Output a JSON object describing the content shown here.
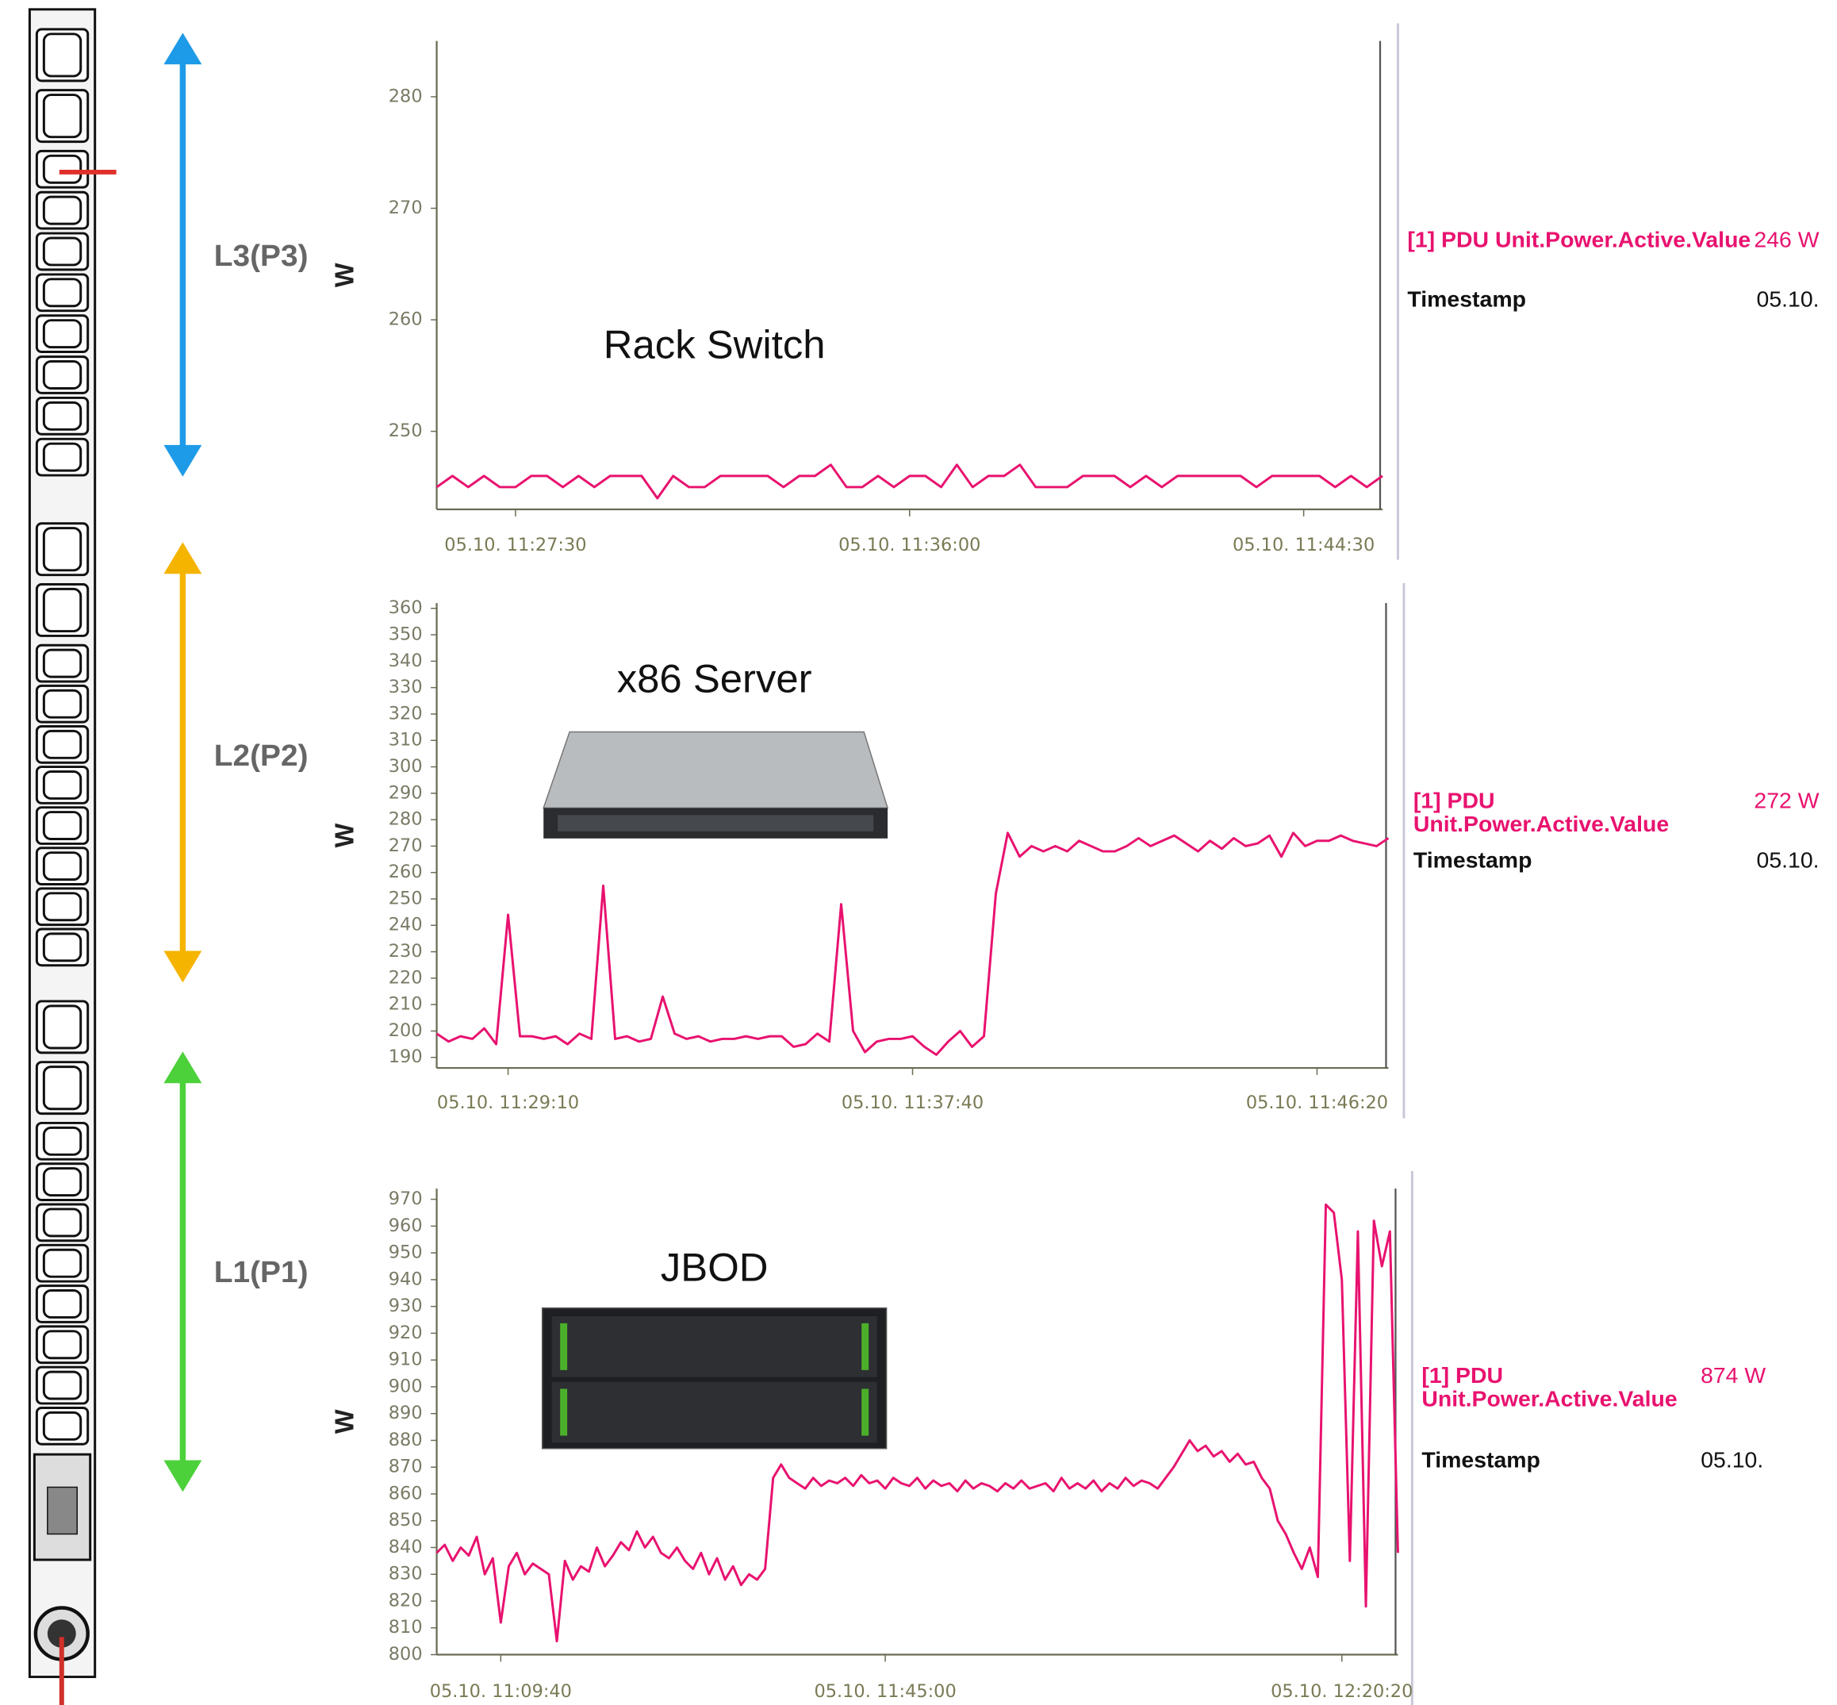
{
  "pdu": {
    "phases": [
      "L3(P3)",
      "L2(P2)",
      "L1(P1)"
    ]
  },
  "chart_data": [
    {
      "type": "line",
      "annotation": "Rack Switch",
      "ylabel": "W",
      "ylim": [
        243,
        285
      ],
      "yticks": [
        250,
        260,
        270,
        280
      ],
      "categories": [
        null,
        null,
        null,
        null,
        null,
        "05.10. 11:27:30",
        null,
        null,
        null,
        null,
        null,
        null,
        null,
        null,
        null,
        null,
        null,
        null,
        null,
        null,
        null,
        null,
        null,
        null,
        null,
        null,
        null,
        null,
        null,
        null,
        "05.10. 11:36:00",
        null,
        null,
        null,
        null,
        null,
        null,
        null,
        null,
        null,
        null,
        null,
        null,
        null,
        null,
        null,
        null,
        null,
        null,
        null,
        null,
        null,
        null,
        null,
        null,
        "05.10. 11:44:30",
        null,
        null,
        null,
        null,
        null
      ],
      "series": [
        {
          "name": "[1] PDU Unit.Power.Active.Value",
          "color": "#e8126f",
          "values": [
            245,
            246,
            245,
            246,
            245,
            245,
            246,
            246,
            245,
            246,
            245,
            246,
            246,
            246,
            244,
            246,
            245,
            245,
            246,
            246,
            246,
            246,
            245,
            246,
            246,
            247,
            245,
            245,
            246,
            245,
            246,
            246,
            245,
            247,
            245,
            246,
            246,
            247,
            245,
            245,
            245,
            246,
            246,
            246,
            245,
            246,
            245,
            246,
            246,
            246,
            246,
            246,
            245,
            246,
            246,
            246,
            246,
            245,
            246,
            245,
            246
          ]
        }
      ],
      "readout_value": "246 W",
      "readout_time_label": "Timestamp",
      "readout_time": "05.10."
    },
    {
      "type": "line",
      "annotation": "x86 Server",
      "ylabel": "W",
      "ylim": [
        186,
        362
      ],
      "yticks": [
        190,
        200,
        210,
        220,
        230,
        240,
        250,
        260,
        270,
        280,
        290,
        300,
        310,
        320,
        330,
        340,
        350,
        360
      ],
      "categories": [
        null,
        null,
        null,
        null,
        null,
        null,
        "05.10. 11:29:10",
        null,
        null,
        null,
        null,
        null,
        null,
        null,
        null,
        null,
        null,
        null,
        null,
        null,
        null,
        null,
        null,
        null,
        null,
        null,
        null,
        null,
        null,
        null,
        null,
        null,
        null,
        null,
        null,
        null,
        null,
        null,
        null,
        null,
        "05.10. 11:37:40",
        null,
        null,
        null,
        null,
        null,
        null,
        null,
        null,
        null,
        null,
        null,
        null,
        null,
        null,
        null,
        null,
        null,
        null,
        null,
        null,
        null,
        null,
        null,
        null,
        null,
        null,
        null,
        null,
        null,
        null,
        null,
        null,
        null,
        "05.10. 11:46:20",
        null,
        null,
        null,
        null,
        null,
        null
      ],
      "series": [
        {
          "name": "[1] PDU Unit.Power.Active.Value",
          "color": "#e8126f",
          "values": [
            199,
            196,
            198,
            197,
            201,
            195,
            244,
            198,
            198,
            197,
            198,
            195,
            199,
            197,
            255,
            197,
            198,
            196,
            197,
            213,
            199,
            197,
            198,
            196,
            197,
            197,
            198,
            197,
            198,
            198,
            194,
            195,
            199,
            196,
            248,
            200,
            192,
            196,
            197,
            197,
            198,
            194,
            191,
            196,
            200,
            194,
            198,
            252,
            275,
            266,
            270,
            268,
            270,
            268,
            272,
            270,
            268,
            268,
            270,
            273,
            270,
            272,
            274,
            271,
            268,
            272,
            269,
            273,
            270,
            271,
            274,
            266,
            275,
            270,
            272,
            272,
            274,
            272,
            271,
            270,
            273
          ]
        }
      ],
      "readout_value": "272 W",
      "readout_time_label": "Timestamp",
      "readout_time": "05.10."
    },
    {
      "type": "line",
      "annotation": "JBOD",
      "ylabel": "W",
      "ylim": [
        800,
        974
      ],
      "yticks": [
        800,
        810,
        820,
        830,
        840,
        850,
        860,
        870,
        880,
        890,
        900,
        910,
        920,
        930,
        940,
        950,
        960,
        970
      ],
      "categories": [
        null,
        null,
        null,
        null,
        null,
        null,
        null,
        null,
        "05.10. 11:09:40",
        null,
        null,
        null,
        null,
        null,
        null,
        null,
        null,
        null,
        null,
        null,
        null,
        null,
        null,
        null,
        null,
        null,
        null,
        null,
        null,
        null,
        null,
        null,
        null,
        null,
        null,
        null,
        null,
        null,
        null,
        null,
        null,
        null,
        null,
        null,
        null,
        null,
        null,
        null,
        null,
        null,
        null,
        null,
        null,
        null,
        null,
        null,
        "05.10. 11:45:00",
        null,
        null,
        null,
        null,
        null,
        null,
        null,
        null,
        null,
        null,
        null,
        null,
        null,
        null,
        null,
        null,
        null,
        null,
        null,
        null,
        null,
        null,
        null,
        null,
        null,
        null,
        null,
        null,
        null,
        null,
        null,
        null,
        null,
        null,
        null,
        null,
        null,
        null,
        null,
        null,
        null,
        null,
        null,
        null,
        null,
        null,
        null,
        null,
        null,
        null,
        null,
        null,
        null,
        null,
        null,
        null,
        "05.10. 12:20:20",
        null,
        null,
        null,
        null,
        null,
        null,
        null
      ],
      "series": [
        {
          "name": "[1] PDU Unit.Power.Active.Value",
          "color": "#e8126f",
          "values": [
            838,
            841,
            835,
            840,
            837,
            844,
            830,
            836,
            812,
            833,
            838,
            830,
            834,
            832,
            830,
            805,
            835,
            828,
            833,
            831,
            840,
            833,
            837,
            842,
            839,
            846,
            840,
            844,
            838,
            836,
            840,
            835,
            832,
            838,
            830,
            836,
            828,
            833,
            826,
            830,
            828,
            832,
            866,
            871,
            866,
            864,
            862,
            866,
            863,
            865,
            864,
            866,
            863,
            867,
            864,
            865,
            862,
            866,
            864,
            863,
            866,
            862,
            865,
            863,
            864,
            861,
            865,
            862,
            864,
            863,
            861,
            864,
            862,
            865,
            862,
            863,
            864,
            861,
            866,
            862,
            864,
            862,
            865,
            861,
            864,
            862,
            866,
            863,
            865,
            864,
            862,
            866,
            870,
            875,
            880,
            876,
            878,
            874,
            876,
            872,
            875,
            871,
            872,
            866,
            862,
            850,
            845,
            838,
            832,
            840,
            829,
            968,
            965,
            940,
            835,
            958,
            818,
            962,
            945,
            958,
            838
          ]
        }
      ],
      "readout_value": "874 W",
      "readout_time_label": "Timestamp",
      "readout_time": "05.10."
    }
  ]
}
